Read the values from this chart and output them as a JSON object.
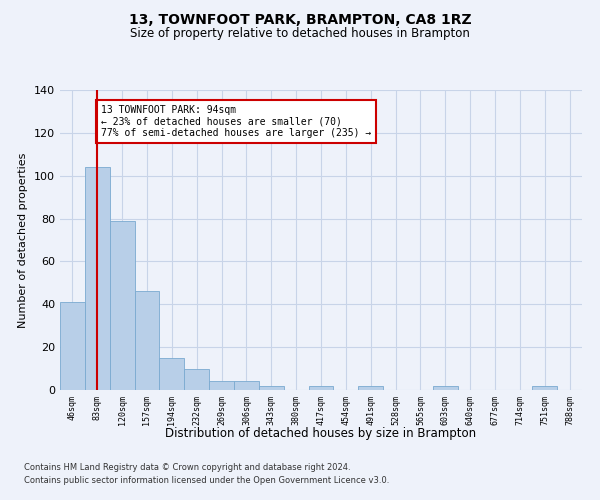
{
  "title": "13, TOWNFOOT PARK, BRAMPTON, CA8 1RZ",
  "subtitle": "Size of property relative to detached houses in Brampton",
  "xlabel": "Distribution of detached houses by size in Brampton",
  "ylabel": "Number of detached properties",
  "bar_values": [
    41,
    104,
    79,
    46,
    15,
    10,
    4,
    4,
    2,
    0,
    2,
    0,
    2,
    0,
    0,
    2,
    0,
    0,
    0,
    2,
    0
  ],
  "bin_labels": [
    "46sqm",
    "83sqm",
    "120sqm",
    "157sqm",
    "194sqm",
    "232sqm",
    "269sqm",
    "306sqm",
    "343sqm",
    "380sqm",
    "417sqm",
    "454sqm",
    "491sqm",
    "528sqm",
    "565sqm",
    "603sqm",
    "640sqm",
    "677sqm",
    "714sqm",
    "751sqm",
    "788sqm"
  ],
  "bar_color": "#b8cfe8",
  "bar_edge_color": "#7aaad0",
  "grid_color": "#c8d4e8",
  "vline_x": 1,
  "vline_color": "#cc0000",
  "annotation_text": "13 TOWNFOOT PARK: 94sqm\n← 23% of detached houses are smaller (70)\n77% of semi-detached houses are larger (235) →",
  "annotation_box_color": "#ffffff",
  "annotation_box_edge": "#cc0000",
  "ylim": [
    0,
    140
  ],
  "yticks": [
    0,
    20,
    40,
    60,
    80,
    100,
    120,
    140
  ],
  "footer1": "Contains HM Land Registry data © Crown copyright and database right 2024.",
  "footer2": "Contains public sector information licensed under the Open Government Licence v3.0.",
  "bg_color": "#eef2fa"
}
